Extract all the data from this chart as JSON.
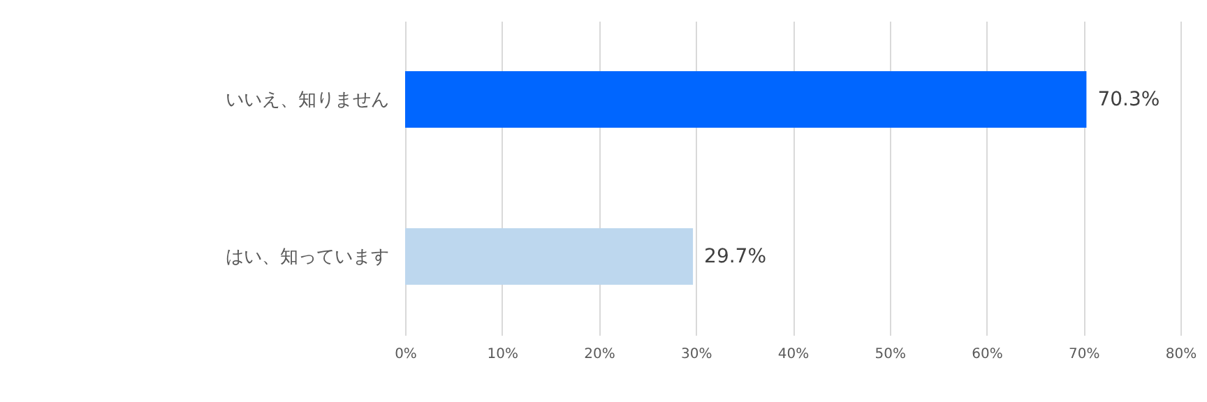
{
  "chart_data": {
    "type": "bar",
    "orientation": "horizontal",
    "categories": [
      "いいえ、知りません",
      "はい、知っています"
    ],
    "values": [
      70.3,
      29.7
    ],
    "colors": [
      "#0066ff",
      "#bdd7ee"
    ],
    "value_labels": [
      "70.3%",
      "29.7%"
    ],
    "xlim": [
      0,
      80
    ],
    "xticks": [
      {
        "value": 0,
        "label": "0%"
      },
      {
        "value": 10,
        "label": "10%"
      },
      {
        "value": 20,
        "label": "20%"
      },
      {
        "value": 30,
        "label": "30%"
      },
      {
        "value": 40,
        "label": "40%"
      },
      {
        "value": 50,
        "label": "50%"
      },
      {
        "value": 60,
        "label": "60%"
      },
      {
        "value": 70,
        "label": "70%"
      },
      {
        "value": 80,
        "label": "80%"
      }
    ],
    "grid": "x"
  }
}
